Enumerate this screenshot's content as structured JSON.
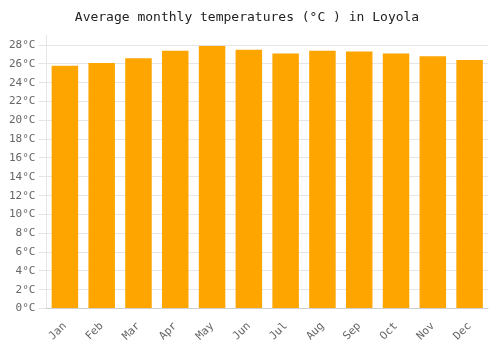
{
  "chart_data": {
    "type": "bar",
    "title": "Average monthly temperatures (°C ) in Loyola",
    "categories": [
      "Jan",
      "Feb",
      "Mar",
      "Apr",
      "May",
      "Jun",
      "Jul",
      "Aug",
      "Sep",
      "Oct",
      "Nov",
      "Dec"
    ],
    "values": [
      25.8,
      26.1,
      26.6,
      27.4,
      27.9,
      27.5,
      27.1,
      27.4,
      27.3,
      27.1,
      26.8,
      26.4
    ],
    "color": "#FFA500",
    "ylim": [
      0,
      29
    ],
    "yticks": [
      {
        "value": 0,
        "label": "0°C"
      },
      {
        "value": 2,
        "label": "2°C"
      },
      {
        "value": 4,
        "label": "4°C"
      },
      {
        "value": 6,
        "label": "6°C"
      },
      {
        "value": 8,
        "label": "8°C"
      },
      {
        "value": 10,
        "label": "10°C"
      },
      {
        "value": 12,
        "label": "12°C"
      },
      {
        "value": 14,
        "label": "14°C"
      },
      {
        "value": 16,
        "label": "16°C"
      },
      {
        "value": 18,
        "label": "18°C"
      },
      {
        "value": 20,
        "label": "20°C"
      },
      {
        "value": 22,
        "label": "22°C"
      },
      {
        "value": 24,
        "label": "24°C"
      },
      {
        "value": 26,
        "label": "26°C"
      },
      {
        "value": 28,
        "label": "28°C"
      }
    ],
    "grid": true
  }
}
